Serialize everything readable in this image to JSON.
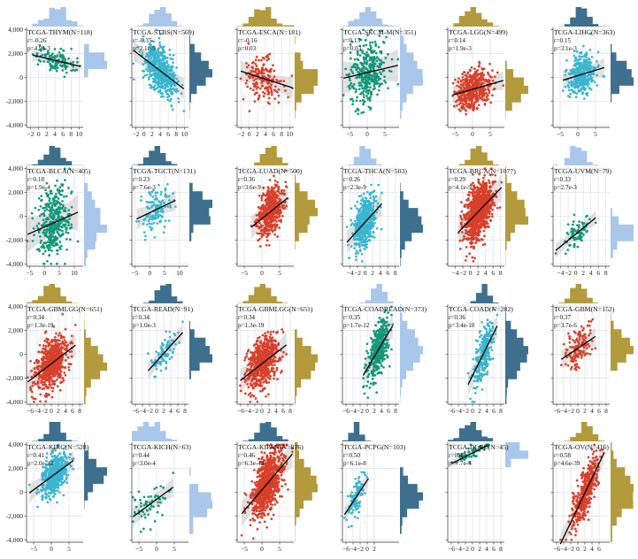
{
  "figure_title": "",
  "palette": {
    "red": "#d7402b",
    "green": "#12977a",
    "cyan": "#3ab5cf",
    "navy": "#3f6f8e",
    "gold": "#b39a3c",
    "sky": "#a9c7ea"
  },
  "chart_data": [
    {
      "type": "scatter",
      "title": "TCGA-THYM(N=118)",
      "r": "r=-0.26",
      "p": "p=4.9e-3",
      "n": 118,
      "slope": -80,
      "intercept": 1750,
      "x_center": 4,
      "x_spread": 2.4,
      "y_sd": 480,
      "color": "green",
      "hist_x": "sky",
      "hist_y": "sky",
      "xlim": [
        -3,
        11
      ],
      "xticks": [
        -2,
        0,
        2,
        4,
        6,
        8,
        10
      ],
      "ylim": [
        -4200,
        4200
      ],
      "yticks": [
        -4000,
        -2000,
        0,
        2000,
        4000
      ],
      "ytick_labels": [
        "-4,000",
        "-2,000",
        "0",
        "2,000",
        "4,000"
      ]
    },
    {
      "type": "scatter",
      "title": "TCGA-STBS(N=569)",
      "r": "r=-0.35",
      "p": "p=2.1e-9",
      "n": 569,
      "slope": -260,
      "intercept": 1600,
      "x_center": 4,
      "x_spread": 2.0,
      "y_sd": 900,
      "color": "cyan",
      "hist_x": "sky",
      "hist_y": "navy",
      "xlim": [
        -3,
        11
      ],
      "xticks": [
        -2,
        0,
        2,
        4,
        6,
        8,
        10
      ],
      "ylim": [
        -4200,
        4200
      ],
      "yticks": [
        -4000,
        -2000,
        0,
        2000,
        4000
      ],
      "ytick_labels": []
    },
    {
      "type": "scatter",
      "title": "TCGA-ESCA(N=181)",
      "r": "r=-0.16",
      "p": "p=0.03",
      "n": 181,
      "slope": -110,
      "intercept": 300,
      "x_center": 3.5,
      "x_spread": 2.3,
      "y_sd": 900,
      "color": "red",
      "hist_x": "gold",
      "hist_y": "gold",
      "xlim": [
        -3,
        11
      ],
      "xticks": [
        -2,
        0,
        2,
        4,
        6,
        8,
        10
      ],
      "ylim": [
        -4200,
        4200
      ],
      "yticks": [
        -4000,
        -2000,
        0,
        2000,
        4000
      ],
      "ytick_labels": []
    },
    {
      "type": "scatter",
      "title": "TCGA-SKCM-M(N=351)",
      "r": "r=0.13",
      "p": "p=0.03",
      "n": 351,
      "slope": 70,
      "intercept": 400,
      "x_center": 0,
      "x_spread": 2.8,
      "y_sd": 1400,
      "color": "green",
      "hist_x": "sky",
      "hist_y": "sky",
      "xlim": [
        -7,
        9
      ],
      "xticks": [
        -5,
        0,
        5
      ],
      "ylim": [
        -4200,
        4200
      ],
      "yticks": [
        -4000,
        -2000,
        0,
        2000,
        4000
      ],
      "ytick_labels": []
    },
    {
      "type": "scatter",
      "title": "TCGA-LGG(N=499)",
      "r": "r=0.14",
      "p": "p=1.9e-3",
      "n": 499,
      "slope": 85,
      "intercept": -1000,
      "x_center": 0,
      "x_spread": 2.3,
      "y_sd": 800,
      "color": "red",
      "hist_x": "gold",
      "hist_y": "gold",
      "xlim": [
        -7,
        9
      ],
      "xticks": [
        -5,
        0,
        5
      ],
      "ylim": [
        -4200,
        4200
      ],
      "yticks": [
        -4000,
        -2000,
        0,
        2000,
        4000
      ],
      "ytick_labels": []
    },
    {
      "type": "scatter",
      "title": "TCGA-LIHC(N=363)",
      "r": "r=0.15",
      "p": "p=3.1e-3",
      "n": 363,
      "slope": 90,
      "intercept": 150,
      "x_center": 1,
      "x_spread": 2.0,
      "y_sd": 800,
      "color": "cyan",
      "hist_x": "navy",
      "hist_y": "navy",
      "xlim": [
        -7,
        9
      ],
      "xticks": [
        -5,
        0,
        5
      ],
      "ylim": [
        -4200,
        4200
      ],
      "yticks": [
        -4000,
        -2000,
        0,
        2000,
        4000
      ],
      "ytick_labels": []
    },
    {
      "type": "scatter",
      "title": "TCGA-BLCA(N=405)",
      "r": "r=0.18",
      "p": "p=1.9e-4",
      "n": 405,
      "slope": 110,
      "intercept": -900,
      "x_center": 3,
      "x_spread": 2.6,
      "y_sd": 1500,
      "color": "green",
      "hist_x": "navy",
      "hist_y": "sky",
      "xlim": [
        -6,
        13
      ],
      "xticks": [
        -5,
        0,
        5,
        10
      ],
      "ylim": [
        -4200,
        4200
      ],
      "yticks": [
        -4000,
        -2000,
        0,
        2000,
        4000
      ],
      "ytick_labels": [
        "-4,000",
        "-2,000",
        "0",
        "2,000",
        "4,000"
      ]
    },
    {
      "type": "scatter",
      "title": "TCGA-TGCT(N=131)",
      "r": "r=0.23",
      "p": "p=7.6e-3",
      "n": 131,
      "slope": 120,
      "intercept": 300,
      "x_center": 2,
      "x_spread": 2.4,
      "y_sd": 900,
      "color": "cyan",
      "hist_x": "navy",
      "hist_y": "navy",
      "xlim": [
        -6,
        13
      ],
      "xticks": [
        -5,
        0,
        5,
        10
      ],
      "ylim": [
        -4200,
        4200
      ],
      "yticks": [
        -4000,
        -2000,
        0,
        2000,
        4000
      ],
      "ytick_labels": []
    },
    {
      "type": "scatter",
      "title": "TCGA-LUAD(N=500)",
      "r": "r=0.36",
      "p": "p=3.6e-9",
      "n": 500,
      "slope": 240,
      "intercept": -200,
      "x_center": 2.5,
      "x_spread": 1.8,
      "y_sd": 1000,
      "color": "red",
      "hist_x": "gold",
      "hist_y": "gold",
      "xlim": [
        -7,
        9
      ],
      "xticks": [
        -5,
        0,
        5
      ],
      "ylim": [
        -4200,
        4200
      ],
      "yticks": [
        -4000,
        -2000,
        0,
        2000,
        4000
      ],
      "ytick_labels": []
    },
    {
      "type": "scatter",
      "title": "TCGA-THCA(N=503)",
      "r": "r=0.26",
      "p": "p=2.3e-9",
      "n": 503,
      "slope": 350,
      "intercept": -500,
      "x_center": 0,
      "x_spread": 1.5,
      "y_sd": 1000,
      "color": "cyan",
      "hist_x": "sky",
      "hist_y": "navy",
      "xlim": [
        -6,
        9
      ],
      "xticks": [
        -4,
        -2,
        0,
        2,
        4,
        6,
        8
      ],
      "ylim": [
        -4200,
        4200
      ],
      "yticks": [
        -4000,
        -2000,
        0,
        2000,
        4000
      ],
      "ytick_labels": []
    },
    {
      "type": "scatter",
      "title": "TCGA-BRCA(N=1077)",
      "r": "r=0.29",
      "p": "p=4.1e-9",
      "n": 1077,
      "slope": 330,
      "intercept": -300,
      "x_center": 2,
      "x_spread": 1.8,
      "y_sd": 1100,
      "color": "red",
      "hist_x": "gold",
      "hist_y": "gold",
      "xlim": [
        -6,
        9
      ],
      "xticks": [
        -4,
        -2,
        0,
        2,
        4,
        6,
        8
      ],
      "ylim": [
        -4200,
        4200
      ],
      "yticks": [
        -4000,
        -2000,
        0,
        2000,
        4000
      ],
      "ytick_labels": []
    },
    {
      "type": "scatter",
      "title": "TCGA-UVM(N=79)",
      "r": "r=0.33",
      "p": "p=2.7e-3",
      "n": 79,
      "slope": 260,
      "intercept": -1500,
      "x_center": 0.5,
      "x_spread": 1.6,
      "y_sd": 600,
      "color": "green",
      "hist_x": "sky",
      "hist_y": "sky",
      "xlim": [
        -6,
        9
      ],
      "xticks": [
        -4,
        -2,
        0,
        2,
        4,
        6,
        8
      ],
      "ylim": [
        -4200,
        4200
      ],
      "yticks": [
        -4000,
        -2000,
        0,
        2000,
        4000
      ],
      "ytick_labels": []
    },
    {
      "type": "scatter",
      "title": "TCGA-GBMLGG(N=651)",
      "r": "r=0.34",
      "p": "p=1.3e-19",
      "n": 651,
      "slope": 230,
      "intercept": -800,
      "x_center": 0,
      "x_spread": 2.3,
      "y_sd": 1000,
      "color": "red",
      "hist_x": "gold",
      "hist_y": "gold",
      "xlim": [
        -7,
        9
      ],
      "xticks": [
        -6,
        -4,
        -2,
        0,
        2,
        4,
        6,
        8
      ],
      "ylim": [
        -4200,
        4200
      ],
      "yticks": [
        -4000,
        -2000,
        0,
        2000,
        4000
      ],
      "ytick_labels": [
        "-4,000",
        "-2,000",
        "0",
        "2,000",
        "4,000"
      ]
    },
    {
      "type": "scatter",
      "title": "TCGA-READ(N=91)",
      "r": "r=0.34",
      "p": "p=1.0e-3",
      "n": 91,
      "slope": 330,
      "intercept": -600,
      "x_center": 2,
      "x_spread": 1.8,
      "y_sd": 700,
      "color": "cyan",
      "hist_x": "navy",
      "hist_y": "navy",
      "xlim": [
        -7,
        9
      ],
      "xticks": [
        -6,
        -4,
        -2,
        0,
        2,
        4,
        6,
        8
      ],
      "ylim": [
        -4200,
        4200
      ],
      "yticks": [
        -4000,
        -2000,
        0,
        2000,
        4000
      ],
      "ytick_labels": []
    },
    {
      "type": "scatter",
      "title": "TCGA-GBMLGG(N=651)",
      "r": "r=0.34",
      "p": "p=1.3e-19",
      "n": 651,
      "slope": 230,
      "intercept": -800,
      "x_center": 0,
      "x_spread": 2.3,
      "y_sd": 1000,
      "color": "red",
      "hist_x": "gold",
      "hist_y": "gold",
      "xlim": [
        -7,
        9
      ],
      "xticks": [
        -6,
        -4,
        -2,
        0,
        2,
        4,
        6,
        8
      ],
      "ylim": [
        -4200,
        4200
      ],
      "yticks": [
        -4000,
        -2000,
        0,
        2000,
        4000
      ],
      "ytick_labels": []
    },
    {
      "type": "scatter",
      "title": "TCGA-COADREAD(N=373)",
      "r": "r=0.35",
      "p": "p=1.7e-12",
      "n": 373,
      "slope": 500,
      "intercept": -1200,
      "x_center": 3,
      "x_spread": 1.5,
      "y_sd": 1000,
      "color": "green",
      "hist_x": "sky",
      "hist_y": "sky",
      "xlim": [
        -7,
        9
      ],
      "xticks": [
        -6,
        -4,
        -2,
        0,
        2,
        4,
        6,
        8
      ],
      "ylim": [
        -4200,
        4200
      ],
      "yticks": [
        -4000,
        -2000,
        0,
        2000,
        4000
      ],
      "ytick_labels": []
    },
    {
      "type": "scatter",
      "title": "TCGA-COAD(N=282)",
      "r": "r=0.36",
      "p": "p=3.4e-10",
      "n": 282,
      "slope": 600,
      "intercept": -1800,
      "x_center": 3,
      "x_spread": 1.5,
      "y_sd": 1000,
      "color": "cyan",
      "hist_x": "navy",
      "hist_y": "navy",
      "xlim": [
        -7,
        9
      ],
      "xticks": [
        -6,
        -4,
        -2,
        0,
        2,
        4,
        6,
        8
      ],
      "ylim": [
        -4200,
        4200
      ],
      "yticks": [
        -4000,
        -2000,
        0,
        2000,
        4000
      ],
      "ytick_labels": []
    },
    {
      "type": "scatter",
      "title": "TCGA-GBM(N=152)",
      "r": "r=0.37",
      "p": "p=3.7e-6",
      "n": 152,
      "slope": 200,
      "intercept": 500,
      "x_center": 0,
      "x_spread": 2.0,
      "y_sd": 800,
      "color": "red",
      "hist_x": "gold",
      "hist_y": "gold",
      "xlim": [
        -7,
        9
      ],
      "xticks": [
        -6,
        -4,
        -2,
        0,
        2,
        4,
        6,
        8
      ],
      "ylim": [
        -4200,
        4200
      ],
      "yticks": [
        -4000,
        -2000,
        0,
        2000,
        4000
      ],
      "ytick_labels": []
    },
    {
      "type": "scatter",
      "title": "TCGA-KIRC(N=528)",
      "r": "r=0.41",
      "p": "p=2.0e-22",
      "n": 528,
      "slope": 220,
      "intercept": 1300,
      "x_center": 1,
      "x_spread": 1.8,
      "y_sd": 800,
      "color": "cyan",
      "hist_x": "navy",
      "hist_y": "navy",
      "xlim": [
        -7,
        9
      ],
      "xticks": [
        -5,
        0,
        5
      ],
      "ylim": [
        -4200,
        4200
      ],
      "yticks": [
        -4000,
        -2000,
        0,
        2000,
        4000
      ],
      "ytick_labels": [
        "-4,000",
        "-2,000",
        "0",
        "2,000",
        "4,000"
      ]
    },
    {
      "type": "scatter",
      "title": "TCGA-KICH(N=63)",
      "r": "r=0.44",
      "p": "p=3.0e-4",
      "n": 63,
      "slope": 220,
      "intercept": -600,
      "x_center": -1,
      "x_spread": 2.5,
      "y_sd": 800,
      "color": "green",
      "hist_x": "sky",
      "hist_y": "sky",
      "xlim": [
        -7,
        9
      ],
      "xticks": [
        -5,
        0,
        5
      ],
      "ylim": [
        -4200,
        4200
      ],
      "yticks": [
        -4000,
        -2000,
        0,
        2000,
        4000
      ],
      "ytick_labels": []
    },
    {
      "type": "scatter",
      "title": "TCGA-KIPAN(N=876)",
      "r": "r=0.46",
      "p": "p=6.3e-48",
      "n": 876,
      "slope": 350,
      "intercept": 200,
      "x_center": 1.5,
      "x_spread": 2.2,
      "y_sd": 1100,
      "color": "red",
      "hist_x": "navy",
      "hist_y": "gold",
      "xlim": [
        -7,
        9
      ],
      "xticks": [
        -5,
        0,
        5
      ],
      "ylim": [
        -4200,
        4200
      ],
      "yticks": [
        -4000,
        -2000,
        0,
        2000,
        4000
      ],
      "ytick_labels": []
    },
    {
      "type": "scatter",
      "title": "TCGA-PCPG(N=103)",
      "r": "r=0.50",
      "p": "p=6.1e-8",
      "n": 103,
      "slope": 450,
      "intercept": 1000,
      "x_center": -3,
      "x_spread": 1.2,
      "y_sd": 700,
      "color": "cyan",
      "hist_x": "navy",
      "hist_y": "navy",
      "xlim": [
        -7,
        9
      ],
      "xticks": [
        -6,
        -4,
        -2,
        0,
        2
      ],
      "ylim": [
        -4200,
        4200
      ],
      "yticks": [
        -4000,
        -2000,
        0,
        2000,
        4000
      ],
      "ytick_labels": []
    },
    {
      "type": "scatter",
      "title": "TCGA-DLBC(N=45)",
      "r": "r=0.48",
      "p": "p=7.7e-4",
      "n": 45,
      "slope": 150,
      "intercept": 3300,
      "x_center": 0,
      "x_spread": 2.2,
      "y_sd": 300,
      "color": "green",
      "hist_x": "navy",
      "hist_y": "sky",
      "xlim": [
        -7,
        9
      ],
      "xticks": [
        -6,
        -4,
        -2,
        0,
        2,
        4,
        6,
        8
      ],
      "ylim": [
        -4200,
        4200
      ],
      "yticks": [
        -4000,
        -2000,
        0,
        2000,
        4000
      ],
      "ytick_labels": []
    },
    {
      "type": "scatter",
      "title": "TCGA-OV(N=416)",
      "r": "r=0.58",
      "p": "p=4.6e-39",
      "n": 416,
      "slope": 620,
      "intercept": -1300,
      "x_center": 2,
      "x_spread": 1.8,
      "y_sd": 900,
      "color": "red",
      "hist_x": "gold",
      "hist_y": "gold",
      "xlim": [
        -7,
        9
      ],
      "xticks": [
        -6,
        -4,
        -2,
        0,
        2,
        4,
        6
      ],
      "ylim": [
        -4200,
        4200
      ],
      "yticks": [
        -4000,
        -2000,
        0,
        2000,
        4000
      ],
      "ytick_labels": []
    }
  ]
}
